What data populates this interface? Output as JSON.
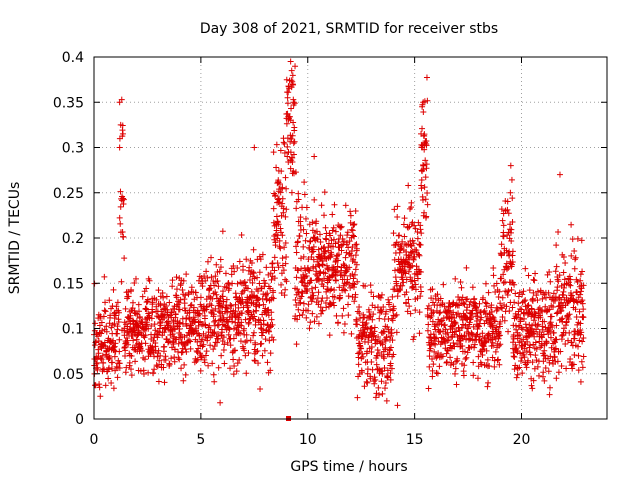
{
  "chart_data": {
    "type": "scatter",
    "title": "Day 308 of 2021, SRMTID for receiver stbs",
    "xlabel": "GPS time / hours",
    "ylabel": "SRMTID / TECUs",
    "xlim": [
      0,
      24
    ],
    "ylim": [
      0,
      0.4
    ],
    "xticks": [
      0,
      5,
      10,
      15,
      20
    ],
    "xtick_labels": [
      "0",
      "5",
      "10",
      "15",
      "20"
    ],
    "yticks": [
      0,
      0.05,
      0.1,
      0.15,
      0.2,
      0.25,
      0.3,
      0.35,
      0.4
    ],
    "ytick_labels": [
      "0",
      "0.05",
      "0.1",
      "0.15",
      "0.2",
      "0.25",
      "0.3",
      "0.35",
      "0.4"
    ],
    "grid": true,
    "marker": "plus",
    "color": "#dd0000",
    "series": [
      {
        "name": "SRMTID",
        "sample_rate_hours": 0.0111,
        "segments": [
          {
            "start": 0.0,
            "end": 1.2,
            "base": 0.085,
            "spread": 0.035
          },
          {
            "start": 1.2,
            "end": 1.4,
            "base": 0.24,
            "spread": 0.1
          },
          {
            "start": 1.4,
            "end": 5.0,
            "base": 0.1,
            "spread": 0.035
          },
          {
            "start": 5.0,
            "end": 8.4,
            "base": 0.12,
            "spread": 0.045
          },
          {
            "start": 8.4,
            "end": 9.0,
            "base": 0.22,
            "spread": 0.06
          },
          {
            "start": 9.0,
            "end": 9.4,
            "base": 0.33,
            "spread": 0.05
          },
          {
            "start": 9.4,
            "end": 10.0,
            "base": 0.17,
            "spread": 0.05
          },
          {
            "start": 10.0,
            "end": 12.3,
            "base": 0.17,
            "spread": 0.045
          },
          {
            "start": 12.3,
            "end": 14.0,
            "base": 0.09,
            "spread": 0.04
          },
          {
            "start": 14.0,
            "end": 15.3,
            "base": 0.17,
            "spread": 0.045
          },
          {
            "start": 15.3,
            "end": 15.6,
            "base": 0.28,
            "spread": 0.06
          },
          {
            "start": 15.6,
            "end": 19.0,
            "base": 0.1,
            "spread": 0.035
          },
          {
            "start": 19.0,
            "end": 19.6,
            "base": 0.18,
            "spread": 0.06
          },
          {
            "start": 19.6,
            "end": 21.6,
            "base": 0.1,
            "spread": 0.04
          },
          {
            "start": 21.6,
            "end": 22.9,
            "base": 0.12,
            "spread": 0.05
          }
        ],
        "peaks": [
          {
            "x": 1.2,
            "y": 0.35
          },
          {
            "x": 1.25,
            "y": 0.325
          },
          {
            "x": 1.2,
            "y": 0.3
          },
          {
            "x": 7.5,
            "y": 0.3
          },
          {
            "x": 9.2,
            "y": 0.395
          },
          {
            "x": 9.25,
            "y": 0.385
          },
          {
            "x": 9.3,
            "y": 0.37
          },
          {
            "x": 9.35,
            "y": 0.35
          },
          {
            "x": 9.1,
            "y": 0.295
          },
          {
            "x": 10.3,
            "y": 0.29
          },
          {
            "x": 15.4,
            "y": 0.35
          },
          {
            "x": 15.35,
            "y": 0.345
          },
          {
            "x": 15.3,
            "y": 0.315
          },
          {
            "x": 15.35,
            "y": 0.3
          },
          {
            "x": 19.5,
            "y": 0.28
          },
          {
            "x": 21.8,
            "y": 0.27
          },
          {
            "x": 14.7,
            "y": 0.258
          },
          {
            "x": 13.7,
            "y": 0.02
          },
          {
            "x": 14.2,
            "y": 0.015
          },
          {
            "x": 5.9,
            "y": 0.018
          }
        ],
        "zero_marker": {
          "x": 9.1,
          "y": 0.0
        }
      }
    ]
  }
}
